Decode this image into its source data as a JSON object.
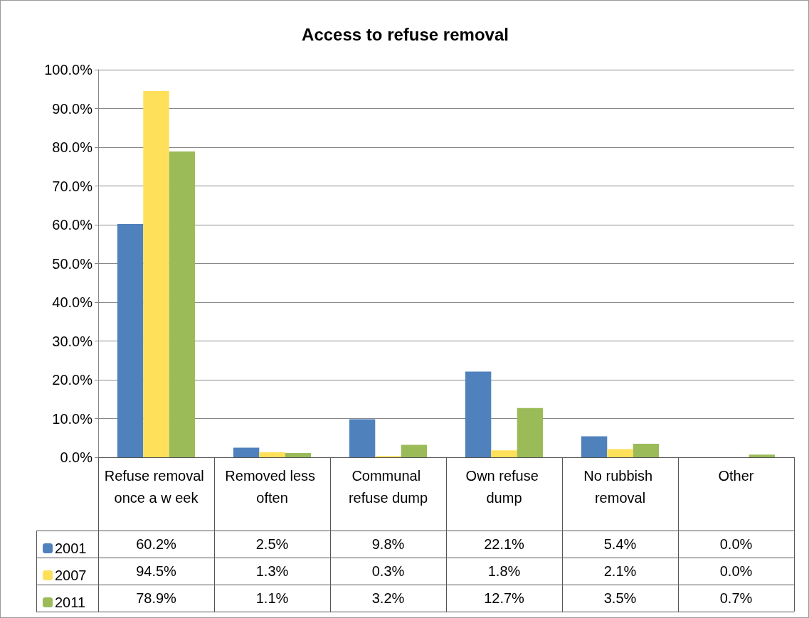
{
  "chart_data": {
    "type": "bar",
    "title": "Access to refuse removal",
    "categories": [
      "Refuse removal once a w eek",
      "Removed less often",
      "Communal refuse dump",
      "Own refuse dump",
      "No rubbish removal",
      "Other"
    ],
    "series": [
      {
        "name": "2001",
        "color": "#4f81bd",
        "values": [
          60.2,
          2.5,
          9.8,
          22.1,
          5.4,
          0.0
        ],
        "value_labels": [
          "60.2%",
          "2.5%",
          "9.8%",
          "22.1%",
          "5.4%",
          "0.0%"
        ]
      },
      {
        "name": "2007",
        "color": "#ffe05a",
        "values": [
          94.5,
          1.3,
          0.3,
          1.8,
          2.1,
          0.0
        ],
        "value_labels": [
          "94.5%",
          "1.3%",
          "0.3%",
          "1.8%",
          "2.1%",
          "0.0%"
        ]
      },
      {
        "name": "2011",
        "color": "#9bbb59",
        "values": [
          78.9,
          1.1,
          3.2,
          12.7,
          3.5,
          0.7
        ],
        "value_labels": [
          "78.9%",
          "1.1%",
          "3.2%",
          "12.7%",
          "3.5%",
          "0.7%"
        ]
      }
    ],
    "ylim": [
      0,
      100
    ],
    "yticks": [
      {
        "value": 0,
        "label": "0.0%"
      },
      {
        "value": 10,
        "label": "10.0%"
      },
      {
        "value": 20,
        "label": "20.0%"
      },
      {
        "value": 30,
        "label": "30.0%"
      },
      {
        "value": 40,
        "label": "40.0%"
      },
      {
        "value": 50,
        "label": "50.0%"
      },
      {
        "value": 60,
        "label": "60.0%"
      },
      {
        "value": 70,
        "label": "70.0%"
      },
      {
        "value": 80,
        "label": "80.0%"
      },
      {
        "value": 90,
        "label": "90.0%"
      },
      {
        "value": 100,
        "label": "100.0%"
      }
    ],
    "grid": "y",
    "legend": "bottom left"
  }
}
